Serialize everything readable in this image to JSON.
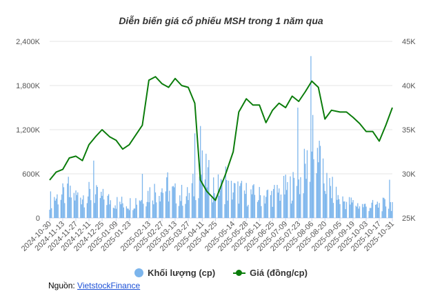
{
  "chart_data": {
    "type": "bar+line",
    "title": "Diễn biến giá cổ phiếu MSH trong 1 năm qua",
    "left_axis": {
      "ticks": [
        "0",
        "600K",
        "1,200K",
        "1,800K",
        "2,400K"
      ],
      "range": [
        0,
        2400000
      ]
    },
    "right_axis": {
      "ticks": [
        "25K",
        "30K",
        "35K",
        "40K",
        "45K"
      ],
      "range": [
        25000,
        45000
      ]
    },
    "x_ticks": [
      "2024-10-30",
      "2024-11-13",
      "2024-11-27",
      "2024-12-11",
      "2024-12-25",
      "2025-01-09",
      "2025-01-23",
      "2025-02-13",
      "2025-02-27",
      "2025-03-13",
      "2025-03-27",
      "2025-04-11",
      "2025-04-25",
      "2025-05-14",
      "2025-05-28",
      "2025-06-11",
      "2025-06-25",
      "2025-07-09",
      "2025-07-23",
      "2025-08-06",
      "2025-08-20",
      "2025-09-05",
      "2025-09-19",
      "2025-10-03",
      "2025-10-17",
      "2025-10-31"
    ],
    "grid": true,
    "legend_position": "bottom",
    "series": [
      {
        "name": "Khối lượng (cp)",
        "type": "bar",
        "axis": "left",
        "color": "#7cb5ec",
        "anchors": [
          {
            "date": "2024-10-30",
            "value": 250000
          },
          {
            "date": "2024-11-13",
            "value": 320000
          },
          {
            "date": "2024-11-27",
            "value": 300000
          },
          {
            "date": "2024-12-11",
            "value": 330000
          },
          {
            "date": "2024-12-25",
            "value": 280000
          },
          {
            "date": "2025-01-09",
            "value": 220000
          },
          {
            "date": "2025-01-23",
            "value": 200000
          },
          {
            "date": "2025-02-13",
            "value": 350000
          },
          {
            "date": "2025-02-27",
            "value": 420000
          },
          {
            "date": "2025-03-13",
            "value": 330000
          },
          {
            "date": "2025-03-27",
            "value": 300000
          },
          {
            "date": "2025-04-11",
            "value": 650000
          },
          {
            "date": "2025-04-25",
            "value": 420000
          },
          {
            "date": "2025-05-14",
            "value": 380000
          },
          {
            "date": "2025-05-28",
            "value": 340000
          },
          {
            "date": "2025-06-11",
            "value": 300000
          },
          {
            "date": "2025-06-25",
            "value": 320000
          },
          {
            "date": "2025-07-09",
            "value": 400000
          },
          {
            "date": "2025-07-23",
            "value": 480000
          },
          {
            "date": "2025-08-06",
            "value": 850000
          },
          {
            "date": "2025-08-20",
            "value": 500000
          },
          {
            "date": "2025-09-05",
            "value": 250000
          },
          {
            "date": "2025-09-19",
            "value": 200000
          },
          {
            "date": "2025-10-03",
            "value": 160000
          },
          {
            "date": "2025-10-17",
            "value": 180000
          },
          {
            "date": "2025-10-31",
            "value": 200000
          }
        ],
        "spikes": [
          {
            "date": "2024-11-19",
            "value": 560000
          },
          {
            "date": "2024-12-16",
            "value": 780000
          },
          {
            "date": "2025-02-06",
            "value": 600000
          },
          {
            "date": "2025-03-05",
            "value": 620000
          },
          {
            "date": "2025-04-03",
            "value": 1150000
          },
          {
            "date": "2025-04-09",
            "value": 1250000
          },
          {
            "date": "2025-05-06",
            "value": 700000
          },
          {
            "date": "2025-07-22",
            "value": 1500000
          },
          {
            "date": "2025-08-05",
            "value": 2200000
          },
          {
            "date": "2025-08-07",
            "value": 1400000
          },
          {
            "date": "2025-08-14",
            "value": 1050000
          },
          {
            "date": "2025-08-15",
            "value": 980000
          },
          {
            "date": "2025-10-28",
            "value": 520000
          }
        ]
      },
      {
        "name": "Giá (đồng/cp)",
        "type": "line",
        "axis": "right",
        "color": "#0a7c0a",
        "points": [
          {
            "date": "2024-10-30",
            "value": 29300
          },
          {
            "date": "2024-11-06",
            "value": 30200
          },
          {
            "date": "2024-11-13",
            "value": 30500
          },
          {
            "date": "2024-11-20",
            "value": 31800
          },
          {
            "date": "2024-11-27",
            "value": 32000
          },
          {
            "date": "2024-12-04",
            "value": 31500
          },
          {
            "date": "2024-12-11",
            "value": 33300
          },
          {
            "date": "2024-12-18",
            "value": 34200
          },
          {
            "date": "2024-12-25",
            "value": 35000
          },
          {
            "date": "2025-01-02",
            "value": 34200
          },
          {
            "date": "2025-01-09",
            "value": 33800
          },
          {
            "date": "2025-01-16",
            "value": 32800
          },
          {
            "date": "2025-01-23",
            "value": 33300
          },
          {
            "date": "2025-02-06",
            "value": 35500
          },
          {
            "date": "2025-02-13",
            "value": 40600
          },
          {
            "date": "2025-02-20",
            "value": 41000
          },
          {
            "date": "2025-02-27",
            "value": 40200
          },
          {
            "date": "2025-03-06",
            "value": 39800
          },
          {
            "date": "2025-03-13",
            "value": 40800
          },
          {
            "date": "2025-03-20",
            "value": 40000
          },
          {
            "date": "2025-03-27",
            "value": 39800
          },
          {
            "date": "2025-04-03",
            "value": 38000
          },
          {
            "date": "2025-04-09",
            "value": 29300
          },
          {
            "date": "2025-04-16",
            "value": 28000
          },
          {
            "date": "2025-04-25",
            "value": 27000
          },
          {
            "date": "2025-05-06",
            "value": 30000
          },
          {
            "date": "2025-05-14",
            "value": 32500
          },
          {
            "date": "2025-05-20",
            "value": 37000
          },
          {
            "date": "2025-05-28",
            "value": 38500
          },
          {
            "date": "2025-06-04",
            "value": 37800
          },
          {
            "date": "2025-06-11",
            "value": 37800
          },
          {
            "date": "2025-06-18",
            "value": 35800
          },
          {
            "date": "2025-06-25",
            "value": 37200
          },
          {
            "date": "2025-07-02",
            "value": 38000
          },
          {
            "date": "2025-07-09",
            "value": 37500
          },
          {
            "date": "2025-07-16",
            "value": 38800
          },
          {
            "date": "2025-07-23",
            "value": 38200
          },
          {
            "date": "2025-07-30",
            "value": 39300
          },
          {
            "date": "2025-08-06",
            "value": 40500
          },
          {
            "date": "2025-08-13",
            "value": 39800
          },
          {
            "date": "2025-08-20",
            "value": 36200
          },
          {
            "date": "2025-08-27",
            "value": 37200
          },
          {
            "date": "2025-09-05",
            "value": 37000
          },
          {
            "date": "2025-09-12",
            "value": 37000
          },
          {
            "date": "2025-09-19",
            "value": 36400
          },
          {
            "date": "2025-09-26",
            "value": 35700
          },
          {
            "date": "2025-10-03",
            "value": 34800
          },
          {
            "date": "2025-10-10",
            "value": 34800
          },
          {
            "date": "2025-10-17",
            "value": 33700
          },
          {
            "date": "2025-10-24",
            "value": 35500
          },
          {
            "date": "2025-10-31",
            "value": 37500
          }
        ]
      }
    ]
  },
  "source": {
    "label": "Nguồn:",
    "link_text": "VietstockFinance"
  }
}
